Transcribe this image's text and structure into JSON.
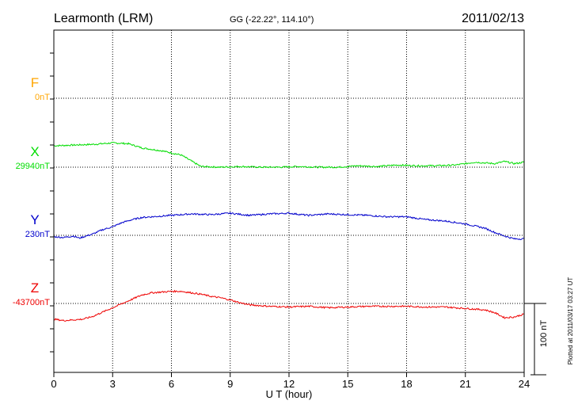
{
  "header": {
    "station": "Learmonth (LRM)",
    "coords": "GG (-22.22°, 114.10°)",
    "date": "2011/02/13"
  },
  "scale_bar_label": "100 nT",
  "footer_note": "Plotted at 2011/03/17 03:27 UT",
  "colors": {
    "F": "#ffa500",
    "X": "#00dd00",
    "Y": "#0000cc",
    "Z": "#ee0000",
    "axis": "#000000"
  },
  "chart_data": {
    "type": "line",
    "title": "Learmonth (LRM)",
    "xlabel": "U T (hour)",
    "xlim": [
      0,
      24
    ],
    "xticks": [
      0,
      3,
      6,
      9,
      12,
      15,
      18,
      21,
      24
    ],
    "xtick_labels": [
      "0",
      "3",
      "6",
      "9",
      "12",
      "15",
      "18",
      "21",
      "24"
    ],
    "ylabel": "",
    "scale_nT": 100,
    "grid": true,
    "series": [
      {
        "name": "F",
        "baseline_label": "0nT",
        "baseline_nT": 0,
        "x": [],
        "values": []
      },
      {
        "name": "X",
        "baseline_label": "29940nT",
        "baseline_nT": 29940,
        "x": [
          0,
          1,
          2,
          3,
          3.8,
          4.5,
          5.5,
          6.5,
          7.5,
          8.5,
          9.5,
          10.5,
          11.5,
          12.5,
          13.5,
          14.5,
          15.5,
          16.5,
          17.5,
          18.5,
          19.5,
          20.5,
          21.5,
          22.5,
          23.0,
          23.5,
          24
        ],
        "values": [
          30,
          31,
          32,
          34,
          33,
          27,
          23,
          17,
          1,
          0,
          1,
          0,
          0,
          1,
          0,
          0,
          2,
          1,
          3,
          2,
          2,
          3,
          7,
          5,
          8,
          5,
          7
        ]
      },
      {
        "name": "Y",
        "baseline_label": "230nT",
        "baseline_nT": 230,
        "x": [
          0,
          0.5,
          1.0,
          1.3,
          2.0,
          2.5,
          3.0,
          3.5,
          4.0,
          4.5,
          5.0,
          6.0,
          7.0,
          8.0,
          9.0,
          10.0,
          11.0,
          12.0,
          13.0,
          14.0,
          15.0,
          16.0,
          17.0,
          18.0,
          19.0,
          20.0,
          21.0,
          22.0,
          22.5,
          23.0,
          23.5,
          24
        ],
        "values": [
          -2,
          -3,
          -1,
          -4,
          2,
          8,
          12,
          18,
          22,
          25,
          26,
          28,
          30,
          29,
          31,
          28,
          30,
          31,
          28,
          30,
          29,
          28,
          26,
          26,
          22,
          20,
          16,
          10,
          4,
          -1,
          -5,
          -5
        ]
      },
      {
        "name": "Z",
        "baseline_label": "-43700nT",
        "baseline_nT": -43700,
        "x": [
          0,
          0.5,
          1.0,
          1.5,
          2.0,
          2.5,
          3.0,
          3.5,
          4.0,
          4.5,
          5.0,
          5.5,
          6.0,
          6.5,
          7.0,
          7.5,
          8.0,
          8.5,
          9.0,
          9.5,
          10.0,
          11.0,
          12.0,
          13.0,
          14.0,
          15.0,
          16.0,
          17.0,
          18.0,
          19.0,
          20.0,
          21.0,
          22.0,
          22.5,
          23.0,
          23.5,
          24
        ],
        "values": [
          -22,
          -24,
          -23,
          -22,
          -18,
          -12,
          -6,
          0,
          6,
          12,
          15,
          16,
          17,
          17,
          15,
          13,
          10,
          8,
          5,
          1,
          -2,
          -4,
          -5,
          -4,
          -6,
          -5,
          -4,
          -4,
          -4,
          -5,
          -5,
          -7,
          -9,
          -13,
          -20,
          -19,
          -15
        ]
      }
    ]
  }
}
